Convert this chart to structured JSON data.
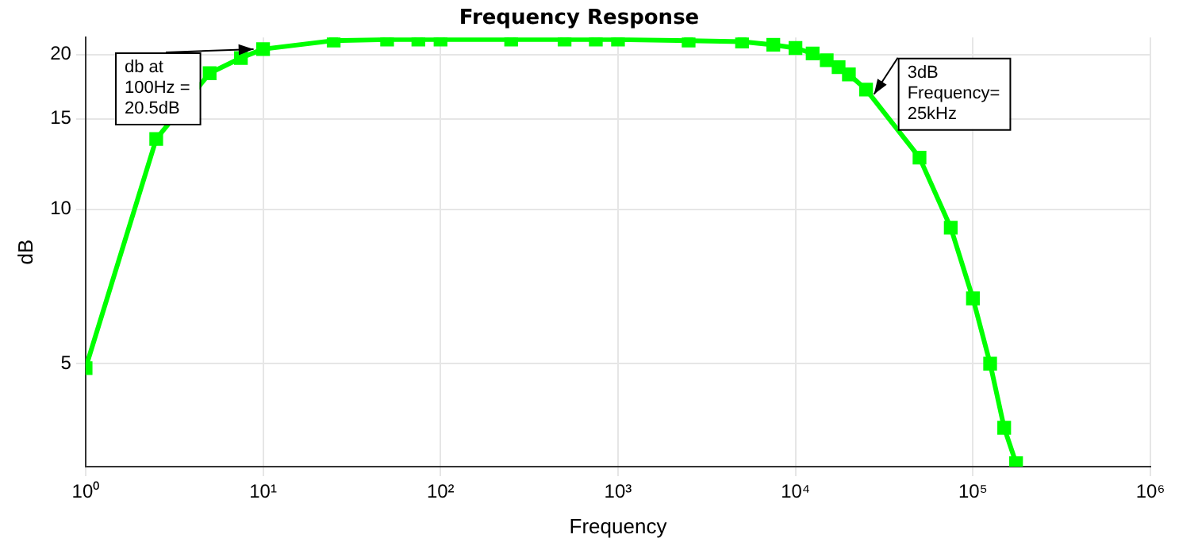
{
  "chart_data": {
    "type": "line",
    "title": "Frequency Response",
    "xlabel": "Frequency",
    "ylabel": "dB",
    "x": [
      1,
      2.5,
      5,
      7.5,
      10,
      25,
      50,
      75,
      100,
      250,
      500,
      750,
      1000,
      2500,
      5000,
      7500,
      10000,
      12500,
      15000,
      17500,
      20000,
      25000,
      50000,
      75000,
      100000,
      125000,
      150000,
      175000
    ],
    "series": [
      {
        "color": "#00ff00",
        "values": [
          4.9,
          13.7,
          18.4,
          19.7,
          20.5,
          21.3,
          21.4,
          21.4,
          21.4,
          21.4,
          21.4,
          21.4,
          21.4,
          21.3,
          21.2,
          20.9,
          20.6,
          20.1,
          19.5,
          18.9,
          18.3,
          17.1,
          12.6,
          9.2,
          6.7,
          5.0,
          3.75,
          3.2
        ]
      }
    ],
    "log": "xy",
    "xlim": [
      1,
      1000000
    ],
    "ylim": [
      3.15,
      21.6
    ],
    "xticks": [
      {
        "value": 1,
        "label": "10⁰"
      },
      {
        "value": 10,
        "label": "10¹"
      },
      {
        "value": 100,
        "label": "10²"
      },
      {
        "value": 1000,
        "label": "10³"
      },
      {
        "value": 10000,
        "label": "10⁴"
      },
      {
        "value": 100000,
        "label": "10⁵"
      },
      {
        "value": 1000000,
        "label": "10⁶"
      }
    ],
    "yticks": [
      5,
      10,
      15,
      20
    ],
    "grid": true,
    "marker": "square",
    "line_style": "solid",
    "legend": false,
    "annotations": [
      {
        "text": "db at\n100Hz =\n20.5dB",
        "x": 10,
        "y": 20.5
      },
      {
        "text": "3dB\nFrequency=\n25kHz",
        "x": 25000,
        "y": 17.1
      }
    ]
  }
}
